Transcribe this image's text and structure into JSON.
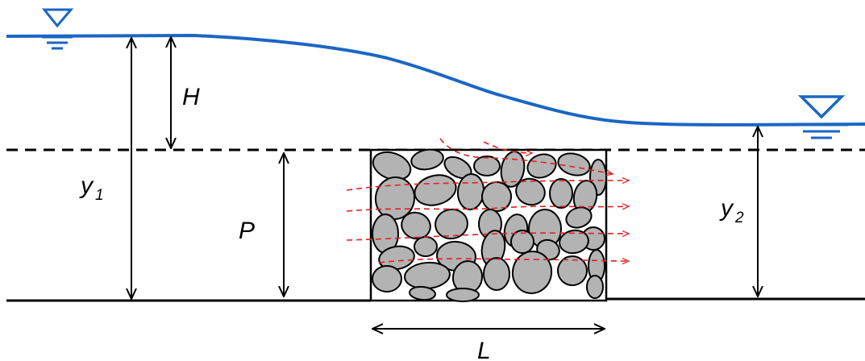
{
  "colors": {
    "water": "#1a66c4",
    "ink": "#000000",
    "stone_fill": "#b3b3b3",
    "flow_lines": "#e02020"
  },
  "icons": {
    "upstream_level": "water-surface-triangle-icon",
    "downstream_level": "water-surface-triangle-icon"
  },
  "labels": {
    "H": "H",
    "y1": "y",
    "y1_sub": "1",
    "P": "P",
    "y2": "y",
    "y2_sub": "2",
    "L": "L"
  }
}
